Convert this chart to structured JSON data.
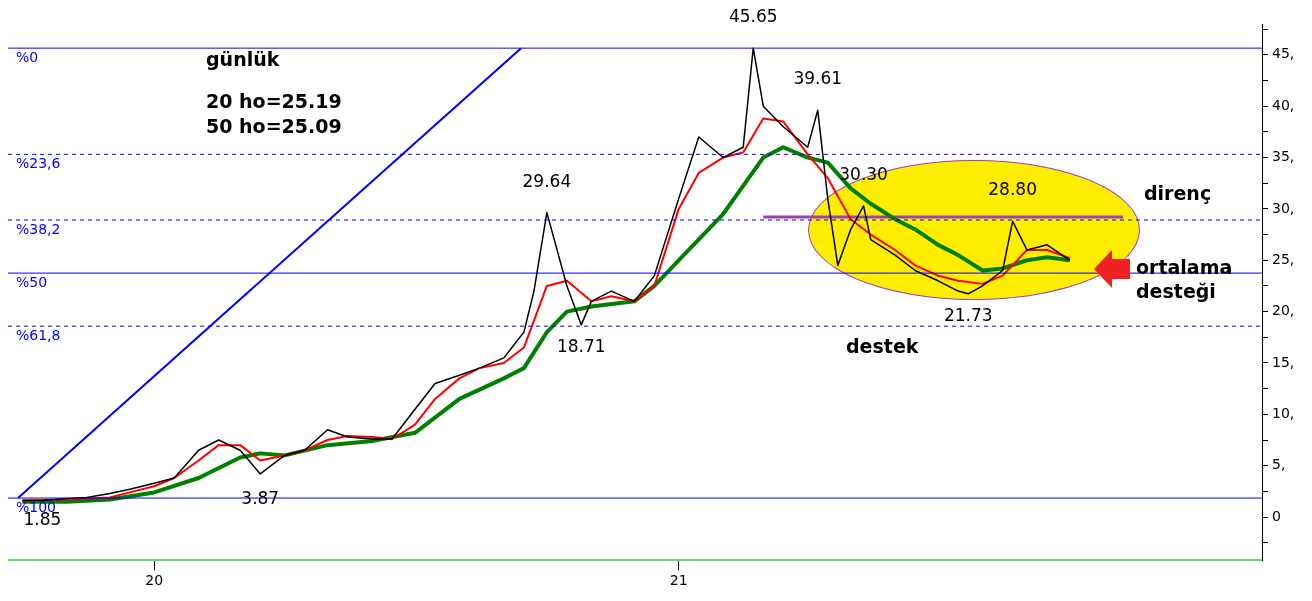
{
  "chart_data": {
    "type": "line",
    "title": "günlük",
    "xlim": [
      "2019-09-21",
      "2022-02-12"
    ],
    "xticks": [
      {
        "value": "2020-01-01",
        "label": "20"
      },
      {
        "value": "2021-01-01",
        "label": "21"
      }
    ],
    "ylim": [
      -4.2,
      48
    ],
    "yticks": [
      {
        "value": -2.5,
        "label": null
      },
      {
        "value": 0,
        "label": "0"
      },
      {
        "value": 2.5,
        "label": null
      },
      {
        "value": 5,
        "label": "5,"
      },
      {
        "value": 7.5,
        "label": null
      },
      {
        "value": 10,
        "label": "10,"
      },
      {
        "value": 12.5,
        "label": null
      },
      {
        "value": 15,
        "label": "15,"
      },
      {
        "value": 17.5,
        "label": null
      },
      {
        "value": 20,
        "label": "20,"
      },
      {
        "value": 22.5,
        "label": null
      },
      {
        "value": 25,
        "label": "25,"
      },
      {
        "value": 27.5,
        "label": null
      },
      {
        "value": 30,
        "label": "30,"
      },
      {
        "value": 32.5,
        "label": null
      },
      {
        "value": 35,
        "label": "35,"
      },
      {
        "value": 37.5,
        "label": null
      },
      {
        "value": 40,
        "label": "40,"
      },
      {
        "value": 42.5,
        "label": null
      },
      {
        "value": 45,
        "label": "45,"
      },
      {
        "value": 47.5,
        "label": null
      }
    ],
    "grid": false,
    "legend": false,
    "series": [
      {
        "color": "#000000",
        "x": [
          "2019-10-01",
          "2019-10-15",
          "2019-11-01",
          "2019-11-15",
          "2019-12-01",
          "2019-12-15",
          "2020-01-01",
          "2020-01-15",
          "2020-02-01",
          "2020-02-15",
          "2020-03-01",
          "2020-03-15",
          "2020-04-01",
          "2020-04-15",
          "2020-05-01",
          "2020-05-15",
          "2020-06-01",
          "2020-06-15",
          "2020-07-01",
          "2020-07-15",
          "2020-08-01",
          "2020-08-15",
          "2020-09-01",
          "2020-09-15",
          "2020-09-22",
          "2020-10-01",
          "2020-10-15",
          "2020-10-25",
          "2020-11-01",
          "2020-11-15",
          "2020-12-01",
          "2020-12-15",
          "2021-01-01",
          "2021-01-15",
          "2021-02-01",
          "2021-02-15",
          "2021-02-22",
          "2021-03-01",
          "2021-03-15",
          "2021-04-01",
          "2021-04-08",
          "2021-04-15",
          "2021-04-22",
          "2021-05-01",
          "2021-05-10",
          "2021-05-15",
          "2021-06-01",
          "2021-06-15",
          "2021-07-01",
          "2021-07-15",
          "2021-07-22",
          "2021-08-01",
          "2021-08-15",
          "2021-08-22",
          "2021-09-01",
          "2021-09-15",
          "2021-10-01"
        ],
        "values": [
          1.6,
          1.6,
          1.8,
          1.9,
          2.3,
          2.7,
          3.3,
          3.8,
          6.5,
          7.5,
          6.5,
          4.2,
          6,
          6.5,
          8.5,
          7.8,
          7.6,
          7.6,
          10.5,
          13,
          13.8,
          14.5,
          15.5,
          18,
          22,
          29.64,
          22.5,
          18.71,
          21,
          22,
          21,
          23.5,
          31,
          37,
          35,
          36,
          45.65,
          40,
          38,
          36,
          39.61,
          31,
          24.5,
          28,
          30.3,
          27,
          25.5,
          24,
          23,
          22,
          21.73,
          22.5,
          24,
          28.8,
          26,
          26.5,
          25
        ]
      },
      {
        "color": "#ff0000",
        "x": [
          "2019-10-01",
          "2019-11-01",
          "2019-12-01",
          "2019-12-15",
          "2020-01-01",
          "2020-01-15",
          "2020-02-01",
          "2020-02-15",
          "2020-03-01",
          "2020-03-15",
          "2020-04-01",
          "2020-04-15",
          "2020-05-01",
          "2020-05-15",
          "2020-06-01",
          "2020-06-15",
          "2020-07-01",
          "2020-07-15",
          "2020-08-01",
          "2020-08-15",
          "2020-09-01",
          "2020-09-15",
          "2020-10-01",
          "2020-10-15",
          "2020-11-01",
          "2020-11-15",
          "2020-12-01",
          "2020-12-15",
          "2021-01-01",
          "2021-01-15",
          "2021-02-01",
          "2021-02-15",
          "2021-03-01",
          "2021-03-15",
          "2021-04-01",
          "2021-04-15",
          "2021-05-01",
          "2021-05-15",
          "2021-06-01",
          "2021-06-15",
          "2021-07-01",
          "2021-07-15",
          "2021-08-01",
          "2021-08-15",
          "2021-09-01",
          "2021-09-15",
          "2021-10-01"
        ],
        "values": [
          1.6,
          1.7,
          1.9,
          2.4,
          3,
          3.8,
          5.5,
          7,
          7,
          5.5,
          6,
          6.5,
          7.5,
          7.9,
          7.8,
          7.6,
          9,
          11.5,
          13.5,
          14.5,
          15,
          16.5,
          22.5,
          23,
          21,
          21.5,
          21,
          22.5,
          30,
          33.5,
          35,
          35.5,
          38.8,
          38.5,
          35.3,
          33,
          29,
          27.5,
          26,
          24.5,
          23.5,
          23,
          22.7,
          23.5,
          26,
          26,
          25.2
        ]
      },
      {
        "color": "#008000",
        "x": [
          "2019-10-01",
          "2019-11-01",
          "2019-12-01",
          "2020-01-01",
          "2020-02-01",
          "2020-03-01",
          "2020-03-15",
          "2020-04-01",
          "2020-05-01",
          "2020-06-01",
          "2020-07-01",
          "2020-08-01",
          "2020-09-01",
          "2020-09-15",
          "2020-10-01",
          "2020-10-15",
          "2020-11-01",
          "2020-12-01",
          "2020-12-15",
          "2021-01-01",
          "2021-02-01",
          "2021-03-01",
          "2021-03-15",
          "2021-04-01",
          "2021-04-15",
          "2021-05-01",
          "2021-05-15",
          "2021-06-01",
          "2021-06-15",
          "2021-07-01",
          "2021-07-15",
          "2021-08-01",
          "2021-08-15",
          "2021-09-01",
          "2021-09-15",
          "2021-10-01"
        ],
        "values": [
          1.5,
          1.5,
          1.7,
          2.4,
          3.8,
          5.8,
          6.2,
          6,
          7,
          7.4,
          8.2,
          11.5,
          13.5,
          14.5,
          18,
          20,
          20.5,
          21,
          22.5,
          25,
          29.5,
          35,
          36,
          35,
          34.5,
          32,
          30.5,
          29,
          28,
          26.5,
          25.5,
          24,
          24.2,
          25,
          25.3,
          25
        ]
      },
      {
        "color": "#0000ff",
        "x": [
          "2019-09-28",
          "2020-09-13"
        ],
        "values": [
          1.85,
          45.65
        ]
      },
      {
        "color": "#a040b0",
        "x": [
          "2021-03-01",
          "2021-11-07"
        ],
        "values": [
          29.2,
          29.2
        ]
      }
    ],
    "ref_lines": [
      {
        "axis": "y",
        "value": 45.65,
        "color": "#0000ff",
        "line_style": "solid"
      },
      {
        "axis": "y",
        "value": 35.31,
        "color": "#0000ff",
        "line_style": "dashed"
      },
      {
        "axis": "y",
        "value": 28.92,
        "color": "#0000ff",
        "line_style": "dashed"
      },
      {
        "axis": "y",
        "value": 23.75,
        "color": "#0000ff",
        "line_style": "solid"
      },
      {
        "axis": "y",
        "value": 18.58,
        "color": "#0000ff",
        "line_style": "dashed"
      },
      {
        "axis": "y",
        "value": 1.85,
        "color": "#0000ff",
        "line_style": "solid"
      }
    ],
    "annotations": [
      {
        "text": "%0",
        "x": "2019-09-21",
        "y": 45.65
      },
      {
        "text": "%23,6",
        "x": "2019-09-21",
        "y": 35.31
      },
      {
        "text": "%38,2",
        "x": "2019-09-21",
        "y": 28.92
      },
      {
        "text": "%50",
        "x": "2019-09-21",
        "y": 23.75
      },
      {
        "text": "%61,8",
        "x": "2019-09-21",
        "y": 18.58
      },
      {
        "text": "%100",
        "x": "2019-09-21",
        "y": 1.85
      },
      {
        "text": "45.65",
        "x": "2021-02-22",
        "y": 45.65
      },
      {
        "text": "29.64",
        "x": "2020-10-01",
        "y": 29.64
      },
      {
        "text": "18.71",
        "x": "2020-10-25",
        "y": 18.71
      },
      {
        "text": "3.87",
        "x": "2020-03-15",
        "y": 3.87
      },
      {
        "text": "1.85",
        "x": "2019-10-15",
        "y": 1.85
      },
      {
        "text": "39.61",
        "x": "2021-04-08",
        "y": 39.61
      },
      {
        "text": "30.30",
        "x": "2021-05-10",
        "y": 30.3
      },
      {
        "text": "28.80",
        "x": "2021-08-22",
        "y": 28.8
      },
      {
        "text": "21.73",
        "x": "2021-07-22",
        "y": 21.73
      },
      "20 ho=25.19",
      "50 ho=25.09",
      "direnç",
      "ortalama desteği",
      "destek"
    ]
  }
}
